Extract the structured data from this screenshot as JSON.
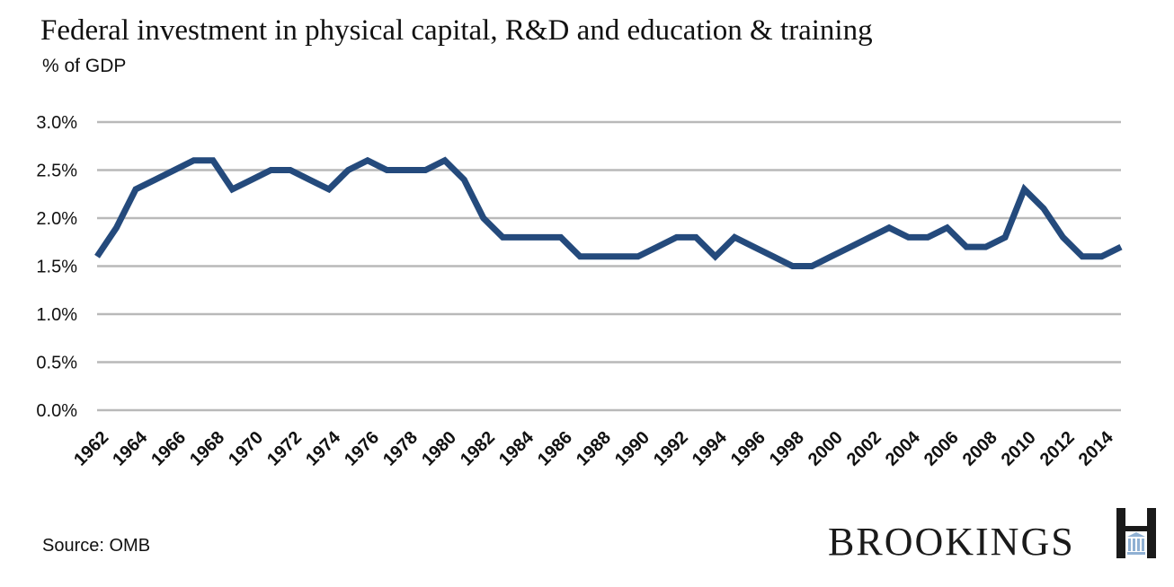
{
  "header": {
    "title": "Federal investment in physical capital, R&D and education & training",
    "subtitle": "% of GDP"
  },
  "footer": {
    "source": "Source: OMB",
    "brand": "BROOKINGS"
  },
  "colors": {
    "line": "#244a7c",
    "grid": "#b9b9b9",
    "text": "#111111"
  },
  "icons": {
    "brand_mark": "brookings-h-icon"
  },
  "chart_data": {
    "type": "line",
    "title": "Federal investment in physical capital, R&D and education & training",
    "subtitle": "% of GDP",
    "xlabel": "",
    "ylabel": "",
    "ylim": [
      0,
      3.0
    ],
    "yticks": [
      0.0,
      0.5,
      1.0,
      1.5,
      2.0,
      2.5,
      3.0
    ],
    "ytick_labels": [
      "0.0%",
      "0.5%",
      "1.0%",
      "1.5%",
      "2.0%",
      "2.5%",
      "3.0%"
    ],
    "xtick_labels": [
      "1962",
      "1964",
      "1966",
      "1968",
      "1970",
      "1972",
      "1974",
      "1976",
      "1978",
      "1980",
      "1982",
      "1984",
      "1986",
      "1988",
      "1990",
      "1992",
      "1994",
      "1996",
      "1998",
      "2000",
      "2002",
      "2004",
      "2006",
      "2008",
      "2010",
      "2012",
      "2014"
    ],
    "grid": true,
    "legend": "none",
    "x": [
      1962,
      1963,
      1964,
      1965,
      1966,
      1967,
      1968,
      1969,
      1970,
      1971,
      1972,
      1973,
      1974,
      1975,
      1976,
      1977,
      1978,
      1979,
      1980,
      1981,
      1982,
      1983,
      1984,
      1985,
      1986,
      1987,
      1988,
      1989,
      1990,
      1991,
      1992,
      1993,
      1994,
      1995,
      1996,
      1997,
      1998,
      1999,
      2000,
      2001,
      2002,
      2003,
      2004,
      2005,
      2006,
      2007,
      2008,
      2009,
      2010,
      2011,
      2012,
      2013,
      2014,
      2015
    ],
    "series": [
      {
        "values": [
          1.6,
          1.9,
          2.3,
          2.4,
          2.5,
          2.6,
          2.6,
          2.3,
          2.4,
          2.5,
          2.5,
          2.4,
          2.3,
          2.5,
          2.6,
          2.5,
          2.5,
          2.5,
          2.6,
          2.4,
          2.0,
          1.8,
          1.8,
          1.8,
          1.8,
          1.6,
          1.6,
          1.6,
          1.6,
          1.7,
          1.8,
          1.8,
          1.6,
          1.8,
          1.7,
          1.6,
          1.5,
          1.5,
          1.6,
          1.7,
          1.8,
          1.9,
          1.8,
          1.8,
          1.9,
          1.7,
          1.7,
          1.8,
          2.3,
          2.1,
          1.8,
          1.6,
          1.6,
          1.7
        ]
      }
    ]
  }
}
